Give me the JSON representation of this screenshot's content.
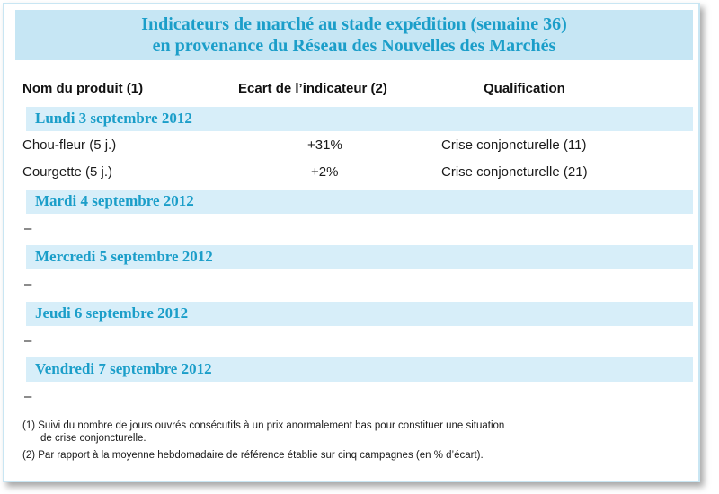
{
  "title": {
    "line1": "Indicateurs de marché au stade expédition (semaine 36)",
    "line2": "en provenance du Réseau des Nouvelles des Marchés"
  },
  "columns": {
    "product": "Nom du produit (1)",
    "gap": "Ecart de l’indicateur (2)",
    "qualification": "Qualification"
  },
  "days": [
    {
      "label": "Lundi 3 septembre 2012",
      "rows": [
        {
          "product": "Chou-fleur (5 j.)",
          "gap": "+31%",
          "qualification": "Crise conjoncturelle (11)"
        },
        {
          "product": "Courgette (5 j.)",
          "gap": "+2%",
          "qualification": "Crise conjoncturelle (21)"
        }
      ]
    },
    {
      "label": "Mardi 4 septembre 2012",
      "empty": "–"
    },
    {
      "label": "Mercredi 5 septembre 2012",
      "empty": "–"
    },
    {
      "label": "Jeudi 6 septembre 2012",
      "empty": "–"
    },
    {
      "label": "Vendredi 7 septembre 2012",
      "empty": "–"
    }
  ],
  "footnotes": {
    "note1_line1": "(1) Suivi du nombre de jours ouvrés consécutifs à un prix anormalement bas pour constituer une situation",
    "note1_line2": "de crise conjoncturelle.",
    "note2": "(2) Par rapport à la moyenne hebdomadaire de référence établie sur cinq campagnes (en % d’écart)."
  },
  "colors": {
    "accent": "#1b9ec9",
    "title_band": "#c6e6f4",
    "day_band": "#d7eef9"
  }
}
